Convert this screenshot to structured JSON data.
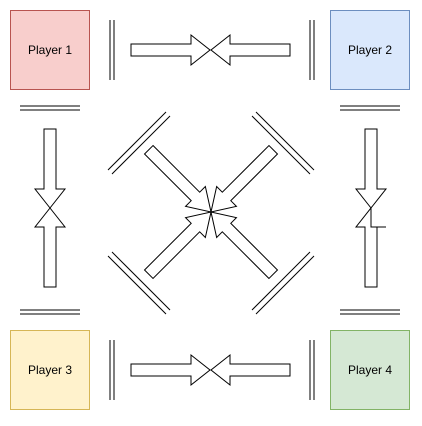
{
  "players": [
    {
      "id": "p1",
      "label": "Player 1",
      "fill": "#f8cecc",
      "stroke": "#b85450"
    },
    {
      "id": "p2",
      "label": "Player 2",
      "fill": "#dae8fc",
      "stroke": "#6c8ebf"
    },
    {
      "id": "p3",
      "label": "Player 3",
      "fill": "#fff2cc",
      "stroke": "#d6b656"
    },
    {
      "id": "p4",
      "label": "Player 4",
      "fill": "#d5e8d4",
      "stroke": "#82b366"
    }
  ],
  "connector_color": "#000000"
}
